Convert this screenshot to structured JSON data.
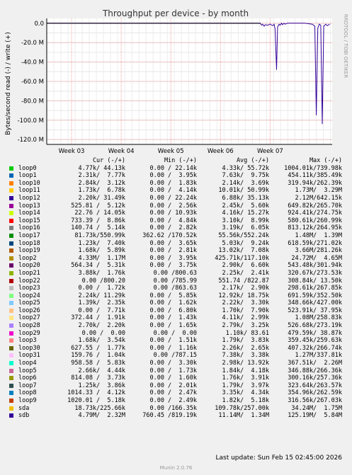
{
  "chart_data": {
    "type": "line",
    "title": "Throughput per device - by month",
    "ylabel": "Bytes/second read (-) / write (+)",
    "vertical_label": "RRDTOOL / TOBI OETIKER",
    "ylim": [
      -125000000,
      5000000
    ],
    "yticks": [
      {
        "value": 0,
        "label": "0.0"
      },
      {
        "value": -20000000,
        "label": "-20.0 M"
      },
      {
        "value": -40000000,
        "label": "-40.0 M"
      },
      {
        "value": -60000000,
        "label": "-60.0 M"
      },
      {
        "value": -80000000,
        "label": "-80.0 M"
      },
      {
        "value": -100000000,
        "label": "-100.0 M"
      },
      {
        "value": -120000000,
        "label": "-120.0 M"
      }
    ],
    "xlim": [
      0,
      5.75
    ],
    "xticks": [
      {
        "value": 0.5,
        "label": "Week 03"
      },
      {
        "value": 1.5,
        "label": "Week 04"
      },
      {
        "value": 2.5,
        "label": "Week 05"
      },
      {
        "value": 3.5,
        "label": "Week 06"
      },
      {
        "value": 4.5,
        "label": "Week 07"
      }
    ],
    "grid": true,
    "series": [
      {
        "name": "sdb",
        "color": "#330099",
        "x": [
          0,
          4.3,
          4.33,
          4.35,
          4.38,
          4.4,
          4.45,
          4.5,
          4.55,
          4.58,
          4.6,
          4.63,
          4.65,
          4.68,
          4.7,
          4.73,
          4.75,
          4.78,
          4.8,
          4.85,
          4.9,
          5.0,
          5.1,
          5.2,
          5.35,
          5.4,
          5.43,
          5.46,
          5.49,
          5.52,
          5.55,
          5.58,
          5.62,
          5.65,
          5.7
        ],
        "y": [
          0,
          0,
          -2000000,
          -1000000,
          -3000000,
          -1500000,
          -2000000,
          -1000000,
          -2500000,
          -1000000,
          -6000000,
          -48000000,
          -4000000,
          -1000000,
          -2000000,
          0,
          -1500000,
          0,
          -1000000,
          0,
          0,
          0,
          0,
          0,
          -1000000,
          -3000000,
          -95000000,
          -5000000,
          -1000000,
          -2000000,
          -104000000,
          -3000000,
          -1000000,
          -2500000,
          -1000000
        ]
      }
    ]
  },
  "legend": {
    "headers": {
      "cur": "Cur (-/+)",
      "min": "Min (-/+)",
      "avg": "Avg (-/+)",
      "max": "Max (-/+)"
    },
    "rows": [
      {
        "name": "loop0",
        "color": "#00cc00",
        "cur": "4.77k/ 44.13k",
        "min": "0.00 / 22.14k",
        "avg": "4.33k/ 55.72k",
        "max": "1004.01k/739.98k"
      },
      {
        "name": "loop1",
        "color": "#0066b3",
        "cur": "2.31k/  7.77k",
        "min": "0.00 /  3.95k",
        "avg": "7.63k/  9.75k",
        "max": "454.11k/385.49k"
      },
      {
        "name": "loop10",
        "color": "#ff8000",
        "cur": "2.84k/  3.12k",
        "min": "0.00 /  1.83k",
        "avg": "2.14k/  3.69k",
        "max": "319.94k/262.39k"
      },
      {
        "name": "loop11",
        "color": "#ffcc00",
        "cur": "1.73k/  6.78k",
        "min": "0.00 /  4.14k",
        "avg": "10.01k/ 50.99k",
        "max": "1.73M/  3.29M"
      },
      {
        "name": "loop12",
        "color": "#330099",
        "cur": "2.20k/ 31.49k",
        "min": "0.00 / 22.24k",
        "avg": "6.88k/ 35.13k",
        "max": "2.12M/642.15k"
      },
      {
        "name": "loop13",
        "color": "#990099",
        "cur": "525.81 /  5.12k",
        "min": "0.00 /  2.56k",
        "avg": "2.45k/  5.60k",
        "max": "649.82k/265.70k"
      },
      {
        "name": "loop14",
        "color": "#ccff00",
        "cur": "22.76 / 14.05k",
        "min": "0.00 / 10.93k",
        "avg": "4.16k/ 15.27k",
        "max": "924.41k/274.75k"
      },
      {
        "name": "loop15",
        "color": "#ff0000",
        "cur": "733.39 /  8.86k",
        "min": "0.00 /  4.84k",
        "avg": "3.10k/  8.99k",
        "max": "580.61k/260.99k"
      },
      {
        "name": "loop16",
        "color": "#808080",
        "cur": "140.74 /  5.14k",
        "min": "0.00 /  2.82k",
        "avg": "3.19k/  6.05k",
        "max": "813.12k/264.95k"
      },
      {
        "name": "loop17",
        "color": "#008f00",
        "cur": "81.73k/550.99k",
        "min": "362.62 /170.52k",
        "avg": "55.56k/552.24k",
        "max": "1.48M/  1.39M"
      },
      {
        "name": "loop18",
        "color": "#00487d",
        "cur": "1.23k/  7.40k",
        "min": "0.00 /  3.65k",
        "avg": "5.03k/  9.24k",
        "max": "618.59k/271.02k"
      },
      {
        "name": "loop19",
        "color": "#b35a00",
        "cur": "1.68k/  5.89k",
        "min": "0.00 /  2.81k",
        "avg": "13.02k/  7.08k",
        "max": "3.66M/281.26k"
      },
      {
        "name": "loop2",
        "color": "#b38f00",
        "cur": "4.33M/  1.17M",
        "min": "0.00 /  3.95k",
        "avg": "425.71k/117.10k",
        "max": "24.72M/  4.65M"
      },
      {
        "name": "loop20",
        "color": "#6b006b",
        "cur": "564.34 /  5.31k",
        "min": "0.00 /  3.75k",
        "avg": "2.90k/  6.60k",
        "max": "543.48k/301.94k"
      },
      {
        "name": "loop21",
        "color": "#8fb300",
        "cur": "3.88k/  1.76k",
        "min": "0.00 /800.63",
        "avg": "2.25k/  2.41k",
        "max": "320.67k/273.53k"
      },
      {
        "name": "loop22",
        "color": "#b30000",
        "cur": "0.00 /800.20",
        "min": "0.00 /785.99",
        "avg": "551.74 /822.87",
        "max": "308.84k/ 13.50k"
      },
      {
        "name": "loop23",
        "color": "#bebebe",
        "cur": "0.00 /  1.72k",
        "min": "0.00 /863.63",
        "avg": "2.17k/  2.90k",
        "max": "298.61k/267.85k"
      },
      {
        "name": "loop24",
        "color": "#80ff80",
        "cur": "2.24k/ 11.29k",
        "min": "0.00 /  5.85k",
        "avg": "12.92k/ 18.75k",
        "max": "691.59k/352.50k"
      },
      {
        "name": "loop25",
        "color": "#80c9ff",
        "cur": "1.39k/  2.35k",
        "min": "0.00 /  1.62k",
        "avg": "2.22k/  3.30k",
        "max": "348.66k/427.00k"
      },
      {
        "name": "loop26",
        "color": "#ffc080",
        "cur": "0.00 /  7.71k",
        "min": "0.00 /  6.80k",
        "avg": "1.70k/  7.90k",
        "max": "523.91k/ 37.95k"
      },
      {
        "name": "loop27",
        "color": "#ffe680",
        "cur": "372.44 /  1.91k",
        "min": "0.00 /  1.43k",
        "avg": "4.11k/  2.99k",
        "max": "1.08M/258.83k"
      },
      {
        "name": "loop28",
        "color": "#aa80ff",
        "cur": "2.70k/  2.20k",
        "min": "0.00 /  1.65k",
        "avg": "2.79k/  3.25k",
        "max": "526.68k/273.19k"
      },
      {
        "name": "loop29",
        "color": "#ee00cc",
        "cur": "0.00 /  0.00",
        "min": "0.00 /  0.00",
        "avg": "1.10k/ 83.61",
        "max": "479.59k/ 38.87k"
      },
      {
        "name": "loop3",
        "color": "#ff8080",
        "cur": "1.68k/  3.54k",
        "min": "0.00 /  1.51k",
        "avg": "1.79k/  3.83k",
        "max": "359.45k/259.63k"
      },
      {
        "name": "loop30",
        "color": "#666600",
        "cur": "627.55 /  1.77k",
        "min": "0.00 /  1.16k",
        "avg": "2.26k/  2.65k",
        "max": "407.32k/266.74k"
      },
      {
        "name": "loop31",
        "color": "#ffbfff",
        "cur": "159.76 /  1.04k",
        "min": "0.00 /787.15",
        "avg": "7.38k/  3.38k",
        "max": "1.27M/337.81k"
      },
      {
        "name": "loop4",
        "color": "#00ffcc",
        "cur": "958.58 /  5.83k",
        "min": "0.00 /  3.30k",
        "avg": "2.98k/ 13.92k",
        "max": "367.51k/  2.26M"
      },
      {
        "name": "loop5",
        "color": "#cc6699",
        "cur": "2.66k/  4.44k",
        "min": "0.00 /  1.73k",
        "avg": "1.84k/  4.18k",
        "max": "346.88k/266.36k"
      },
      {
        "name": "loop6",
        "color": "#999900",
        "cur": "814.08 /  3.73k",
        "min": "0.00 /  1.60k",
        "avg": "1.76k/  3.91k",
        "max": "300.16k/257.36k"
      },
      {
        "name": "loop7",
        "color": "#2f4f4f",
        "cur": "1.25k/  3.86k",
        "min": "0.00 /  2.01k",
        "avg": "1.79k/  3.97k",
        "max": "323.64k/263.57k"
      },
      {
        "name": "loop8",
        "color": "#0080c0",
        "cur": "1014.33 /  4.12k",
        "min": "0.00 /  2.47k",
        "avg": "3.35k/  4.34k",
        "max": "354.96k/262.59k"
      },
      {
        "name": "loop9",
        "color": "#c04000",
        "cur": "1020.01 /  5.18k",
        "min": "0.00 /  2.49k",
        "avg": "1.82k/  5.18k",
        "max": "316.56k/267.03k"
      },
      {
        "name": "sda",
        "color": "#f0c000",
        "cur": "18.73k/225.66k",
        "min": "0.00 /166.35k",
        "avg": "109.78k/257.00k",
        "max": "34.24M/  1.75M"
      },
      {
        "name": "sdb",
        "color": "#330099",
        "cur": "4.79M/  2.32M",
        "min": "760.45 /819.19k",
        "avg": "11.14M/  1.34M",
        "max": "125.19M/  5.84M"
      }
    ]
  },
  "footer": {
    "last_update": "Last update: Sun Feb 15 02:45:00 2026",
    "version": "Munin 2.0.76"
  }
}
